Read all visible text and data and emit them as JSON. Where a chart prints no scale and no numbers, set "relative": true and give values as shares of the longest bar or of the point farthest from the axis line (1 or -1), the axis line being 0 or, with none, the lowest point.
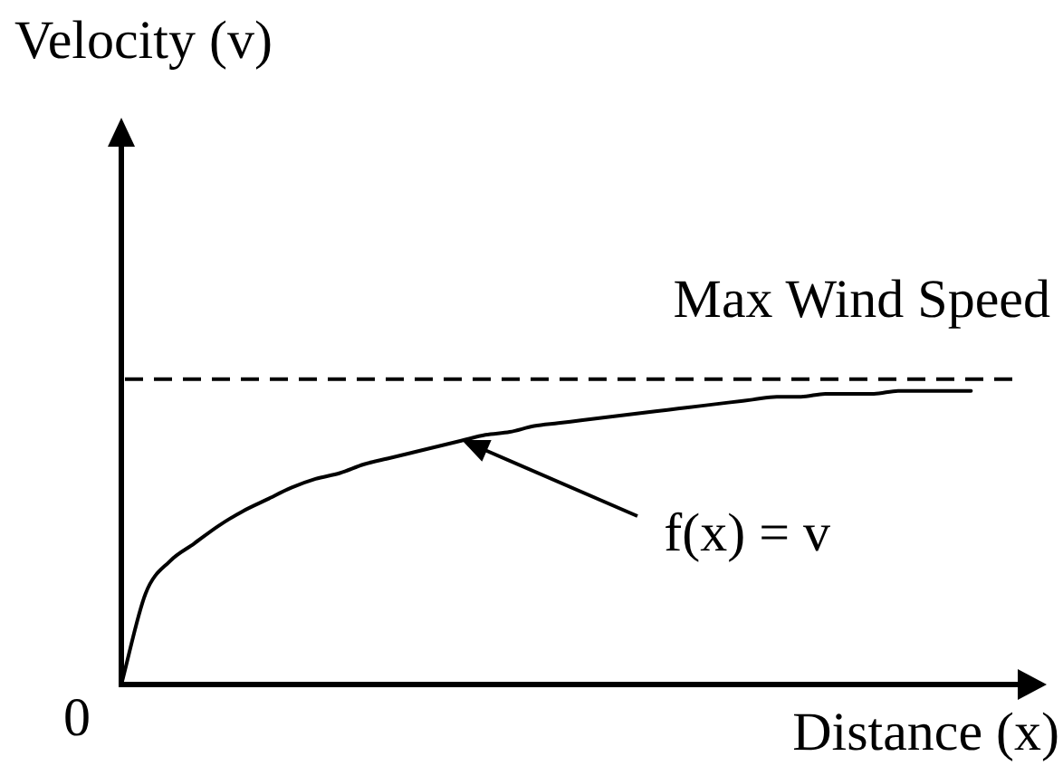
{
  "chart_data": {
    "type": "line",
    "xlabel": "Distance (x)",
    "annotations": [
      "Velocity (v)",
      "0",
      "f(x) = v"
    ],
    "categories": [
      null,
      null,
      null,
      null,
      null,
      null,
      null,
      null,
      null,
      null,
      null,
      null,
      null,
      null,
      null,
      null,
      null,
      null,
      null,
      null,
      null,
      null,
      null,
      null,
      null,
      null,
      null,
      null,
      null,
      null,
      null,
      null,
      null,
      null,
      null,
      null,
      null,
      null
    ],
    "values": [
      0,
      0.31,
      0.42,
      0.48,
      0.54,
      0.59,
      0.63,
      0.67,
      0.7,
      0.72,
      0.75,
      0.77,
      0.79,
      0.81,
      0.83,
      0.85,
      0.86,
      0.88,
      0.89,
      0.9,
      0.91,
      0.92,
      0.93,
      0.94,
      0.95,
      0.96,
      0.97,
      0.98,
      0.98,
      0.99,
      0.99,
      0.99,
      1,
      1,
      1,
      1,
      null,
      null
    ],
    "color": "#000000",
    "marker": "none",
    "relative": true,
    "ref_lines": [
      {
        "axis": "y",
        "value": 1.04,
        "label": "Max Wind Speed",
        "color": "#000000",
        "line_style": "dashed"
      }
    ]
  }
}
